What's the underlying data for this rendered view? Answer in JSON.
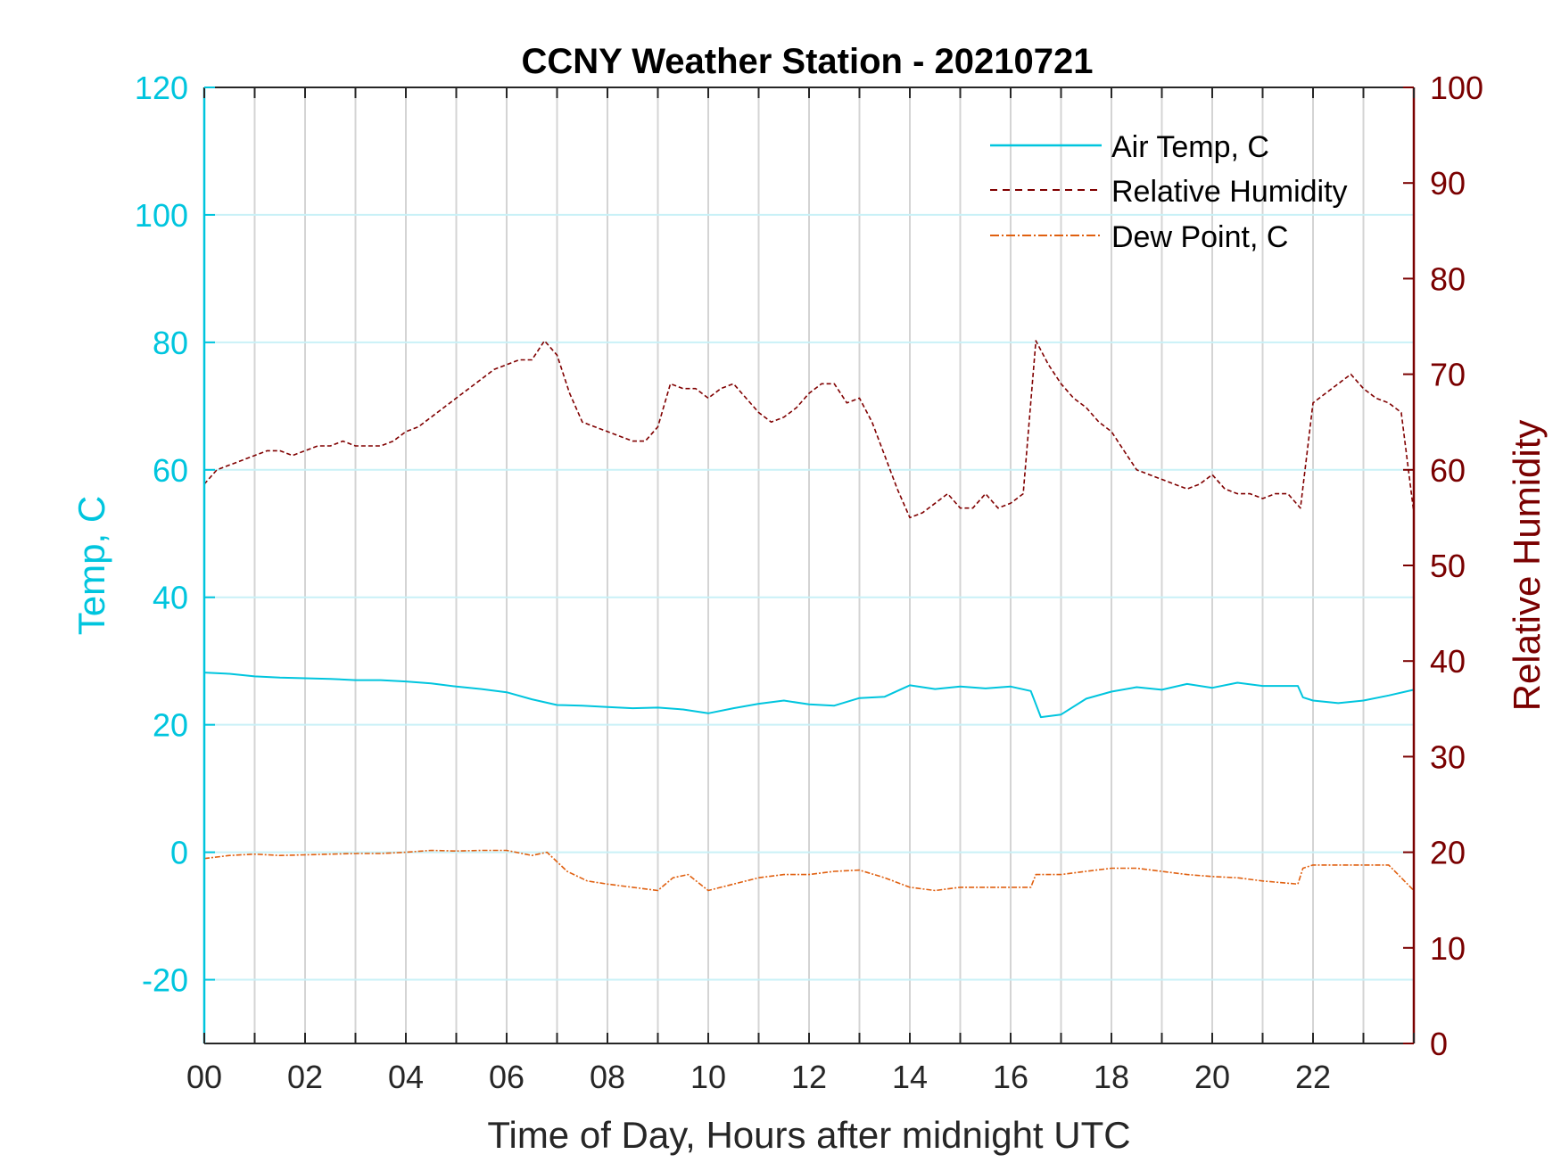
{
  "chart_data": {
    "type": "line",
    "title": "CCNY Weather Station - 20210721",
    "xlabel": "Time of Day, Hours after midnight UTC",
    "ylabel_left": "Temp, C",
    "ylabel_right": "Relative Humidity",
    "xlim": [
      0,
      24
    ],
    "ylim_left": [
      -30,
      120
    ],
    "ylim_right": [
      0,
      100
    ],
    "x_ticks": [
      0,
      2,
      4,
      6,
      8,
      10,
      12,
      14,
      16,
      18,
      20,
      22
    ],
    "x_tick_labels": [
      "00",
      "02",
      "04",
      "06",
      "08",
      "10",
      "12",
      "14",
      "16",
      "18",
      "20",
      "22"
    ],
    "y_left_ticks": [
      -20,
      0,
      20,
      40,
      60,
      80,
      100,
      120
    ],
    "y_left_tick_labels": [
      "-20",
      "0",
      "20",
      "40",
      "60",
      "80",
      "100",
      "120"
    ],
    "y_right_ticks": [
      0,
      10,
      20,
      30,
      40,
      50,
      60,
      70,
      80,
      90,
      100
    ],
    "y_right_tick_labels": [
      "0",
      "10",
      "20",
      "30",
      "40",
      "50",
      "60",
      "70",
      "80",
      "90",
      "100"
    ],
    "grid": true,
    "legend_position": "top-right",
    "colors": {
      "left_axis": "#00c5de",
      "right_axis": "#7a0000",
      "air_temp": "#00c5de",
      "humidity": "#800000",
      "dew_point": "#e06010",
      "grid_x": "#d4d4d4",
      "grid_y": "#c9f1f7"
    },
    "series": [
      {
        "name": "Air Temp, C",
        "axis": "left",
        "style": "solid",
        "x": [
          0,
          0.5,
          1,
          1.5,
          2,
          2.5,
          3,
          3.5,
          4,
          4.5,
          5,
          5.5,
          6,
          6.5,
          7,
          7.5,
          8,
          8.5,
          9,
          9.5,
          10,
          10.5,
          11,
          11.5,
          12,
          12.5,
          13,
          13.5,
          14,
          14.5,
          15,
          15.5,
          16,
          16.4,
          16.6,
          17,
          17.5,
          18,
          18.5,
          19,
          19.5,
          20,
          20.5,
          21,
          21.7,
          21.8,
          22,
          22.5,
          23,
          23.5,
          24
        ],
        "values": [
          28.2,
          28,
          27.6,
          27.4,
          27.3,
          27.2,
          27,
          27,
          26.8,
          26.5,
          26,
          25.6,
          25.1,
          24,
          23.1,
          23,
          22.8,
          22.6,
          22.7,
          22.4,
          21.8,
          22.6,
          23.3,
          23.8,
          23.2,
          23,
          24.2,
          24.4,
          26.2,
          25.6,
          26,
          25.7,
          26,
          25.3,
          21.2,
          21.6,
          24.1,
          25.2,
          25.9,
          25.5,
          26.4,
          25.8,
          26.6,
          26.1,
          26.1,
          24.3,
          23.8,
          23.4,
          23.8,
          24.6,
          25.5
        ]
      },
      {
        "name": "Relative Humidity",
        "axis": "right",
        "style": "dashed",
        "x": [
          0,
          0.25,
          0.5,
          0.75,
          1,
          1.25,
          1.5,
          1.75,
          2,
          2.25,
          2.5,
          2.75,
          3,
          3.25,
          3.5,
          3.75,
          4,
          4.25,
          4.5,
          4.75,
          5,
          5.25,
          5.5,
          5.75,
          6,
          6.25,
          6.5,
          6.75,
          7,
          7.25,
          7.5,
          7.75,
          8,
          8.25,
          8.5,
          8.75,
          9,
          9.25,
          9.5,
          9.75,
          10,
          10.25,
          10.5,
          10.75,
          11,
          11.25,
          11.5,
          11.75,
          12,
          12.25,
          12.5,
          12.75,
          13,
          13.25,
          13.5,
          13.75,
          14,
          14.25,
          14.5,
          14.75,
          15,
          15.25,
          15.5,
          15.75,
          16,
          16.25,
          16.5,
          16.75,
          17,
          17.25,
          17.5,
          17.75,
          18,
          18.25,
          18.5,
          18.75,
          19,
          19.25,
          19.5,
          19.75,
          20,
          20.25,
          20.5,
          20.75,
          21,
          21.25,
          21.5,
          21.75,
          22,
          22.25,
          22.5,
          22.75,
          23,
          23.25,
          23.5,
          23.75,
          24
        ],
        "values": [
          58.5,
          60,
          60.5,
          61,
          61.5,
          62,
          62,
          61.5,
          62,
          62.5,
          62.5,
          63,
          62.5,
          62.5,
          62.5,
          63,
          64,
          64.5,
          65.5,
          66.5,
          67.5,
          68.5,
          69.5,
          70.5,
          71,
          71.5,
          71.5,
          73.5,
          72,
          68,
          65,
          64.5,
          64,
          63.5,
          63,
          63,
          64.5,
          69,
          68.5,
          68.5,
          67.5,
          68.5,
          69,
          67.5,
          66,
          65,
          65.5,
          66.5,
          68,
          69,
          69,
          67,
          67.5,
          65,
          61.5,
          58,
          55,
          55.5,
          56.5,
          57.5,
          56,
          56,
          57.5,
          56,
          56.5,
          57.5,
          73.5,
          71,
          69,
          67.5,
          66.5,
          65,
          64,
          62,
          60,
          59.5,
          59,
          58.5,
          58,
          58.5,
          59.5,
          58,
          57.5,
          57.5,
          57,
          57.5,
          57.5,
          56,
          67,
          68,
          69,
          70,
          68.5,
          67.5,
          67,
          66,
          55.5
        ]
      },
      {
        "name": "Dew Point, C",
        "axis": "left",
        "style": "dash-dot",
        "x": [
          0,
          0.5,
          1,
          1.5,
          2,
          2.5,
          3,
          3.5,
          4,
          4.5,
          5,
          5.5,
          6,
          6.5,
          6.8,
          7.2,
          7.6,
          8,
          8.5,
          9,
          9.3,
          9.6,
          10,
          10.5,
          11,
          11.5,
          12,
          12.5,
          13,
          13.5,
          14,
          14.5,
          15,
          15.5,
          16,
          16.4,
          16.5,
          17,
          17.5,
          18,
          18.5,
          19,
          19.5,
          20,
          20.5,
          21,
          21.7,
          21.8,
          22,
          22.5,
          23,
          23.5,
          24
        ],
        "values": [
          -1,
          -0.5,
          -0.3,
          -0.5,
          -0.4,
          -0.3,
          -0.2,
          -0.2,
          0,
          0.3,
          0.2,
          0.3,
          0.3,
          -0.5,
          0,
          -3,
          -4.5,
          -5,
          -5.5,
          -6,
          -4,
          -3.5,
          -6,
          -5,
          -4,
          -3.5,
          -3.5,
          -3,
          -2.8,
          -4,
          -5.5,
          -6,
          -5.5,
          -5.5,
          -5.5,
          -5.5,
          -3.5,
          -3.5,
          -3,
          -2.5,
          -2.5,
          -3,
          -3.5,
          -3.8,
          -4,
          -4.5,
          -5,
          -2.5,
          -2,
          -2,
          -2,
          -2,
          -6
        ]
      }
    ]
  }
}
